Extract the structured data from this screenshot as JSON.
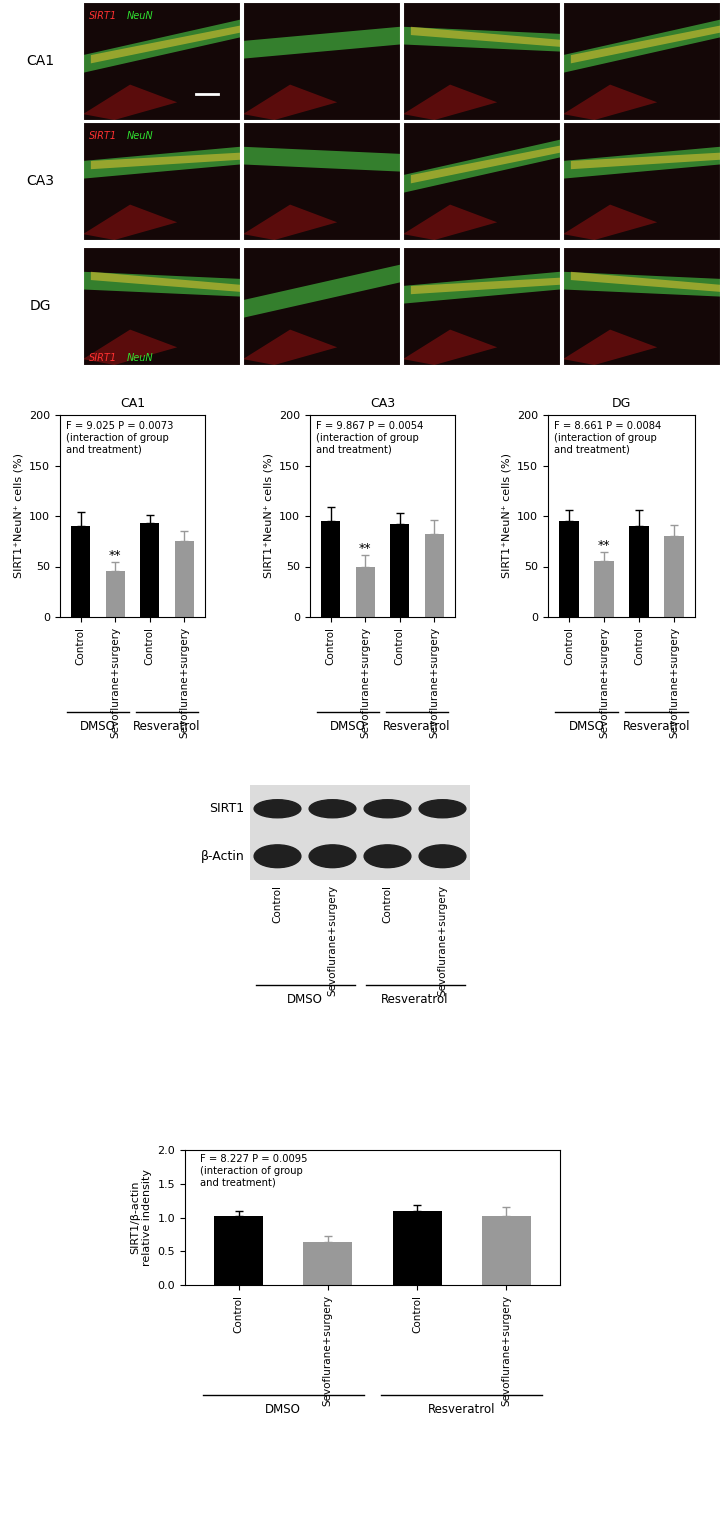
{
  "image_panels": {
    "rows": [
      "CA1",
      "CA3",
      "DG"
    ],
    "stain_labels": [
      {
        "text": "SIRT1",
        "color": "#ff3030"
      },
      {
        "text": "NeuN",
        "color": "#30e030"
      }
    ]
  },
  "chart_data": [
    {
      "type": "bar",
      "title": "CA1",
      "ylabel": "SIRT1⁺NeuN⁺ cells (%)",
      "categories": [
        "Control",
        "Sevoflurane+surgery",
        "Control",
        "Sevoflurane+surgery"
      ],
      "groups": [
        "DMSO",
        "DMSO",
        "Resveratrol",
        "Resveratrol"
      ],
      "values": [
        90,
        46,
        93,
        75
      ],
      "errors": [
        14,
        8,
        8,
        10
      ],
      "colors": [
        "#000000",
        "#999999",
        "#000000",
        "#999999"
      ],
      "significance": [
        null,
        "**",
        null,
        null
      ],
      "annotation": "F = 9.025 P = 0.0073\n(interaction of group\nand treatment)",
      "ylim": [
        0,
        200
      ],
      "yticks": [
        0,
        50,
        100,
        150,
        200
      ]
    },
    {
      "type": "bar",
      "title": "CA3",
      "ylabel": "SIRT1⁺NeuN⁺ cells (%)",
      "categories": [
        "Control",
        "Sevoflurane+surgery",
        "Control",
        "Sevoflurane+surgery"
      ],
      "groups": [
        "DMSO",
        "DMSO",
        "Resveratrol",
        "Resveratrol"
      ],
      "values": [
        95,
        50,
        92,
        82
      ],
      "errors": [
        14,
        11,
        11,
        14
      ],
      "colors": [
        "#000000",
        "#999999",
        "#000000",
        "#999999"
      ],
      "significance": [
        null,
        "**",
        null,
        null
      ],
      "annotation": "F = 9.867 P = 0.0054\n(interaction of group\nand treatment)",
      "ylim": [
        0,
        200
      ],
      "yticks": [
        0,
        50,
        100,
        150,
        200
      ]
    },
    {
      "type": "bar",
      "title": "DG",
      "ylabel": "SIRT1⁺NeuN⁺ cells (%)",
      "categories": [
        "Control",
        "Sevoflurane+surgery",
        "Control",
        "Sevoflurane+surgery"
      ],
      "groups": [
        "DMSO",
        "DMSO",
        "Resveratrol",
        "Resveratrol"
      ],
      "values": [
        95,
        55,
        90,
        80
      ],
      "errors": [
        11,
        9,
        16,
        11
      ],
      "colors": [
        "#000000",
        "#999999",
        "#000000",
        "#999999"
      ],
      "significance": [
        null,
        "**",
        null,
        null
      ],
      "annotation": "F = 8.661 P = 0.0084\n(interaction of group\nand treatment)",
      "ylim": [
        0,
        200
      ],
      "yticks": [
        0,
        50,
        100,
        150,
        200
      ]
    },
    {
      "type": "bar",
      "ylabel": "SIRT1/β-actin\nrelative indensity",
      "categories": [
        "Control",
        "Sevoflurane+surgery",
        "Control",
        "Sevoflurane+surgery"
      ],
      "groups": [
        "DMSO",
        "DMSO",
        "Resveratrol",
        "Resveratrol"
      ],
      "values": [
        1.02,
        0.64,
        1.1,
        1.02
      ],
      "errors": [
        0.07,
        0.09,
        0.09,
        0.13
      ],
      "colors": [
        "#000000",
        "#999999",
        "#000000",
        "#999999"
      ],
      "annotation": "F = 8.227 P = 0.0095\n(interaction of group\nand treatment)",
      "ylim": [
        0,
        2.0
      ],
      "yticks": [
        {
          "value": 0,
          "label": "0.0"
        },
        0.5,
        {
          "value": 1,
          "label": "1.0"
        },
        1.5,
        {
          "value": 2,
          "label": "2.0"
        }
      ]
    }
  ],
  "western_blot": {
    "bands": [
      "SIRT1",
      "β-Actin"
    ],
    "categories": [
      "Control",
      "Sevoflurane+surgery",
      "Control",
      "Sevoflurane+surgery"
    ],
    "groups": [
      "DMSO",
      "DMSO",
      "Resveratrol",
      "Resveratrol"
    ]
  }
}
